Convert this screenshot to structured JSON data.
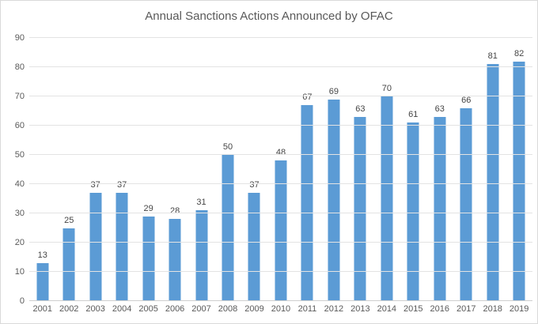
{
  "chart_data": {
    "type": "bar",
    "title": "Annual Sanctions Actions Announced by OFAC",
    "categories": [
      "2001",
      "2002",
      "2003",
      "2004",
      "2005",
      "2006",
      "2007",
      "2008",
      "2009",
      "2010",
      "2011",
      "2012",
      "2013",
      "2014",
      "2015",
      "2016",
      "2017",
      "2018",
      "2019"
    ],
    "values": [
      13,
      25,
      37,
      37,
      29,
      28,
      31,
      50,
      37,
      48,
      67,
      69,
      63,
      70,
      61,
      63,
      66,
      81,
      82
    ],
    "xlabel": "",
    "ylabel": "",
    "ylim": [
      0,
      90
    ],
    "ytick_step": 10,
    "yticks": [
      0,
      10,
      20,
      30,
      40,
      50,
      60,
      70,
      80,
      90
    ],
    "grid": true,
    "legend_position": "none",
    "data_labels": true,
    "colors": {
      "bar": "#5b9bd5",
      "gridline": "#e3e3e3",
      "axis_line": "#cfcfcf",
      "tick_label": "#595959",
      "value_label": "#454545",
      "title": "#595959",
      "background": "#ffffff",
      "frame_border": "#d9d9d9"
    }
  }
}
